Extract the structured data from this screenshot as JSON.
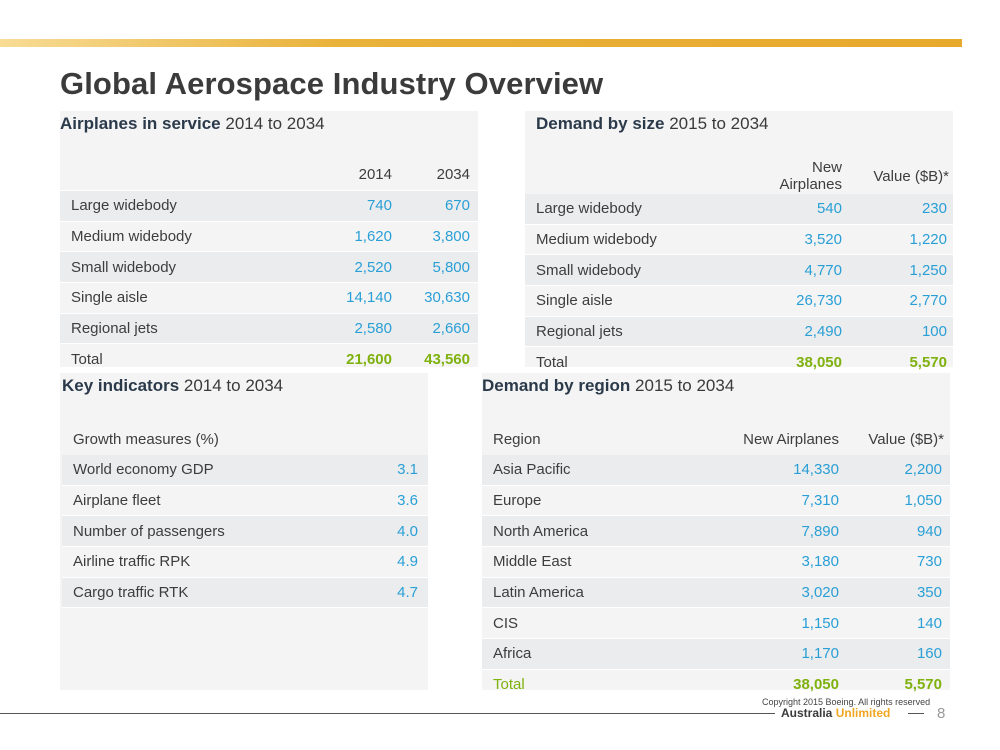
{
  "page": {
    "title": "Global Aerospace Industry Overview"
  },
  "panels": {
    "service": {
      "title_bold": "Airplanes in service",
      "title_rest": " 2014 to 2034",
      "header": [
        "",
        "2014",
        "2034"
      ],
      "rows": [
        [
          "Large widebody",
          "740",
          "670"
        ],
        [
          "Medium widebody",
          "1,620",
          "3,800"
        ],
        [
          "Small widebody",
          "2,520",
          "5,800"
        ],
        [
          "Single aisle",
          "14,140",
          "30,630"
        ],
        [
          "Regional jets",
          "2,580",
          "2,660"
        ]
      ],
      "total": [
        "Total",
        "21,600",
        "43,560"
      ]
    },
    "size": {
      "title_bold": "Demand by size",
      "title_rest": " 2015 to 2034",
      "header": [
        "",
        "New Airplanes",
        "Value ($B)*"
      ],
      "rows": [
        [
          "Large widebody",
          "540",
          "230"
        ],
        [
          "Medium widebody",
          "3,520",
          "1,220"
        ],
        [
          "Small widebody",
          "4,770",
          "1,250"
        ],
        [
          "Single aisle",
          "26,730",
          "2,770"
        ],
        [
          "Regional jets",
          "2,490",
          "100"
        ]
      ],
      "total": [
        "Total",
        "38,050",
        "5,570"
      ]
    },
    "indicators": {
      "title_bold": "Key indicators",
      "title_rest": " 2014 to 2034",
      "header": [
        "Growth measures (%)",
        ""
      ],
      "rows": [
        [
          "World economy GDP",
          "3.1"
        ],
        [
          "Airplane fleet",
          "3.6"
        ],
        [
          "Number of passengers",
          "4.0"
        ],
        [
          "Airline traffic RPK",
          "4.9"
        ],
        [
          "Cargo traffic RTK",
          "4.7"
        ]
      ]
    },
    "region": {
      "title_bold": "Demand by region",
      "title_rest": " 2015 to 2034",
      "header": [
        "Region",
        "New Airplanes",
        "Value ($B)*"
      ],
      "rows": [
        [
          "Asia Pacific",
          "14,330",
          "2,200"
        ],
        [
          "Europe",
          "7,310",
          "1,050"
        ],
        [
          "North America",
          "7,890",
          "940"
        ],
        [
          "Middle East",
          "3,180",
          "730"
        ],
        [
          "Latin America",
          "3,020",
          "350"
        ],
        [
          "CIS",
          "1,150",
          "140"
        ],
        [
          "Africa",
          "1,170",
          "160"
        ]
      ],
      "total": [
        "Total",
        "38,050",
        "5,570"
      ]
    }
  },
  "footer": {
    "copyright": "Copyright 2015 Boeing. All rights reserved",
    "brand_a": "Australia",
    "brand_b": " Unlimited",
    "page_number": "8"
  },
  "colors": {
    "accent_bar": "#e7a92c",
    "value_blue": "#2a9fd6",
    "total_green": "#7fb10f"
  }
}
